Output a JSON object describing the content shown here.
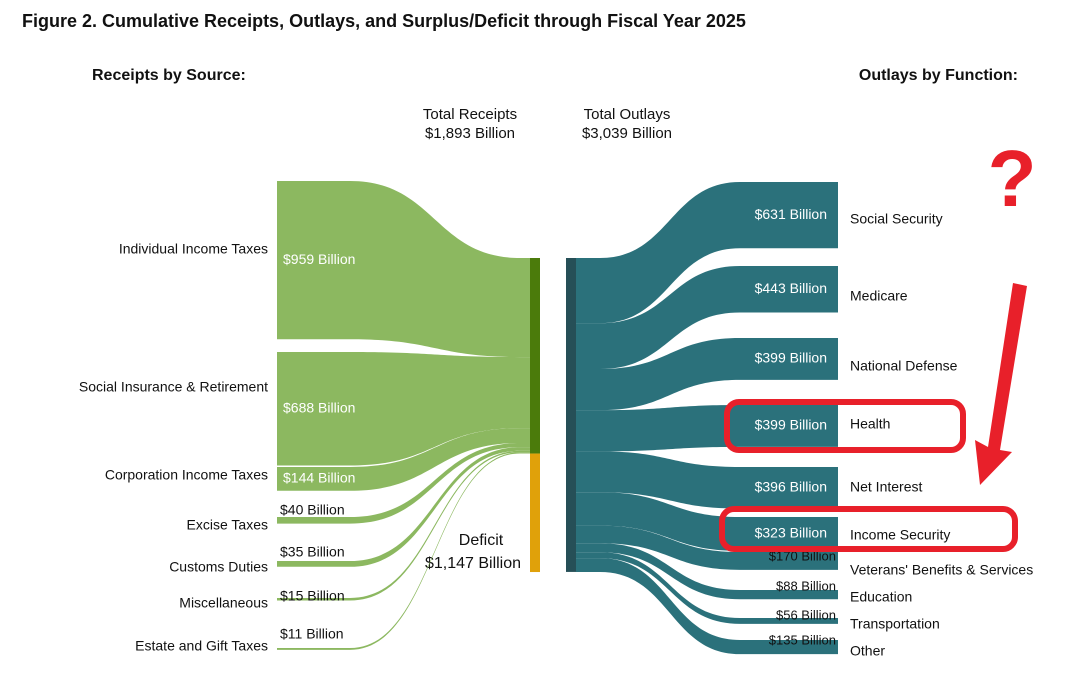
{
  "chart_data": {
    "type": "sankey",
    "title": "Figure 2. Cumulative Receipts, Outlays, and Surplus/Deficit through Fiscal Year 2025",
    "left_heading": "Receipts by Source:",
    "right_heading": "Outlays by Function:",
    "sources": {
      "categories": [
        "Individual Income Taxes",
        "Social Insurance & Retirement",
        "Corporation Income Taxes",
        "Excise Taxes",
        "Customs Duties",
        "Miscellaneous",
        "Estate and Gift Taxes"
      ],
      "values": [
        959,
        688,
        144,
        40,
        35,
        15,
        11
      ],
      "value_labels": [
        "$959 Billion",
        "$688 Billion",
        "$144 Billion",
        "$40 Billion",
        "$35 Billion",
        "$15 Billion",
        "$11 Billion"
      ],
      "color": "#8cb860"
    },
    "functions": {
      "categories": [
        "Social Security",
        "Medicare",
        "National Defense",
        "Health",
        "Net Interest",
        "Income Security",
        "Veterans' Benefits & Services",
        "Education",
        "Transportation",
        "Other"
      ],
      "values": [
        631,
        443,
        399,
        399,
        396,
        323,
        170,
        88,
        56,
        135
      ],
      "value_labels": [
        "$631 Billion",
        "$443 Billion",
        "$399 Billion",
        "$399 Billion",
        "$396 Billion",
        "$323 Billion",
        "$170 Billion",
        "$88 Billion",
        "$56 Billion",
        "$135 Billion"
      ],
      "color": "#2b717b",
      "highlight": [
        3,
        5
      ]
    },
    "totals": [
      {
        "name": "Total Receipts",
        "value": 1893,
        "value_label": "$1,893 Billion",
        "color": "#4b7b0b"
      },
      {
        "name": "Total Outlays",
        "value": 3039,
        "value_label": "$3,039 Billion",
        "color": "#264f57"
      },
      {
        "name": "Deficit",
        "value": 1147,
        "value_label": "$1,147 Billion",
        "color": "#e0a10a"
      }
    ],
    "annotation": {
      "text": "?",
      "color": "#e8202a"
    }
  }
}
